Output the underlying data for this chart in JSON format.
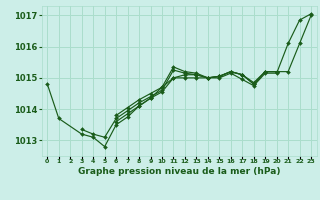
{
  "background_color": "#cceee8",
  "grid_color": "#aaddcc",
  "line_color": "#1a5c1a",
  "marker_color": "#1a5c1a",
  "xlabel": "Graphe pression niveau de la mer (hPa)",
  "ylim": [
    1012.5,
    1017.3
  ],
  "xlim": [
    -0.5,
    23.5
  ],
  "yticks": [
    1013,
    1014,
    1015,
    1016,
    1017
  ],
  "xtick_labels": [
    "0",
    "1",
    "2",
    "3",
    "4",
    "5",
    "6",
    "7",
    "8",
    "9",
    "10",
    "11",
    "12",
    "13",
    "14",
    "15",
    "16",
    "17",
    "18",
    "19",
    "20",
    "21",
    "22",
    "23"
  ],
  "series": [
    [
      0,
      1014.8
    ],
    [
      1,
      1013.7
    ],
    [
      3,
      1013.2
    ],
    [
      4,
      1013.1
    ],
    [
      5,
      1012.8
    ],
    [
      6,
      1013.5
    ],
    [
      7,
      1013.75
    ],
    [
      8,
      1014.1
    ],
    [
      9,
      1014.35
    ],
    [
      10,
      1014.55
    ],
    [
      11,
      1015.0
    ],
    [
      12,
      1015.1
    ],
    [
      13,
      1015.1
    ],
    [
      14,
      1015.0
    ],
    [
      15,
      1015.0
    ],
    [
      16,
      1015.15
    ],
    [
      17,
      1014.95
    ],
    [
      18,
      1014.75
    ],
    [
      19,
      1015.15
    ],
    [
      20,
      1015.15
    ],
    [
      21,
      1016.1
    ],
    [
      22,
      1016.85
    ],
    [
      23,
      1017.05
    ]
  ],
  "series2_start": 3,
  "series2": [
    1013.35,
    1013.2,
    1013.1,
    1013.7,
    1013.95,
    1014.2,
    1014.4,
    1014.6,
    1015.25,
    1015.15,
    1015.1,
    1015.0,
    1015.05,
    1015.2,
    1015.1,
    1014.8,
    1015.2,
    1015.2
  ],
  "series3_start": 6,
  "series3": [
    1013.8,
    1014.05,
    1014.3,
    1014.5,
    1014.7,
    1015.0,
    1015.0,
    1015.0,
    1015.0,
    1015.05,
    1015.2,
    1015.1,
    1014.85,
    1015.2,
    1015.2
  ],
  "series4_start": 6,
  "series4": [
    1013.6,
    1013.85,
    1014.1,
    1014.35,
    1014.7,
    1015.35,
    1015.2,
    1015.15,
    1015.0,
    1015.05,
    1015.2,
    1015.1,
    1014.8,
    1015.2,
    1015.2,
    1015.2,
    1016.1,
    1017.0
  ]
}
